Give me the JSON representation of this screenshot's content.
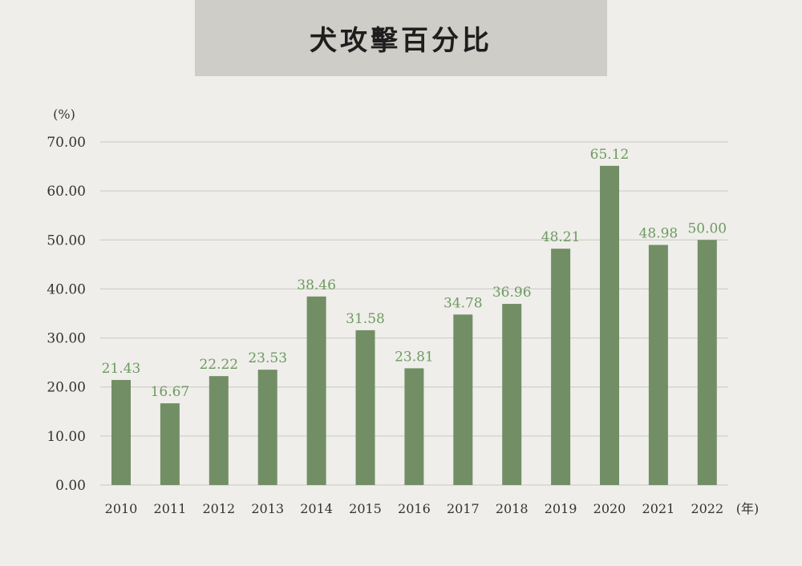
{
  "title": "犬攻擊百分比",
  "colors": {
    "bar": "#728e65",
    "label": "#6f9a62",
    "axis_text": "#333333",
    "grid": "#c9c8c3",
    "banner": "#cfcdc7",
    "background": "#efeeea"
  },
  "chart_data": {
    "type": "bar",
    "title": "犬攻擊百分比",
    "y_unit_label": "(%)",
    "x_unit_label": "(年)",
    "categories": [
      "2010",
      "2011",
      "2012",
      "2013",
      "2014",
      "2015",
      "2016",
      "2017",
      "2018",
      "2019",
      "2020",
      "2021",
      "2022"
    ],
    "values": [
      21.43,
      16.67,
      22.22,
      23.53,
      38.46,
      31.58,
      23.81,
      34.78,
      36.96,
      48.21,
      65.12,
      48.98,
      50.0
    ],
    "value_labels": [
      "21.43",
      "16.67",
      "22.22",
      "23.53",
      "38.46",
      "31.58",
      "23.81",
      "34.78",
      "36.96",
      "48.21",
      "65.12",
      "48.98",
      "50.00"
    ],
    "y_ticks": [
      "0.00",
      "10.00",
      "20.00",
      "30.00",
      "40.00",
      "50.00",
      "60.00",
      "70.00"
    ],
    "ylim": [
      0,
      70
    ],
    "grid": true,
    "legend": "none"
  }
}
